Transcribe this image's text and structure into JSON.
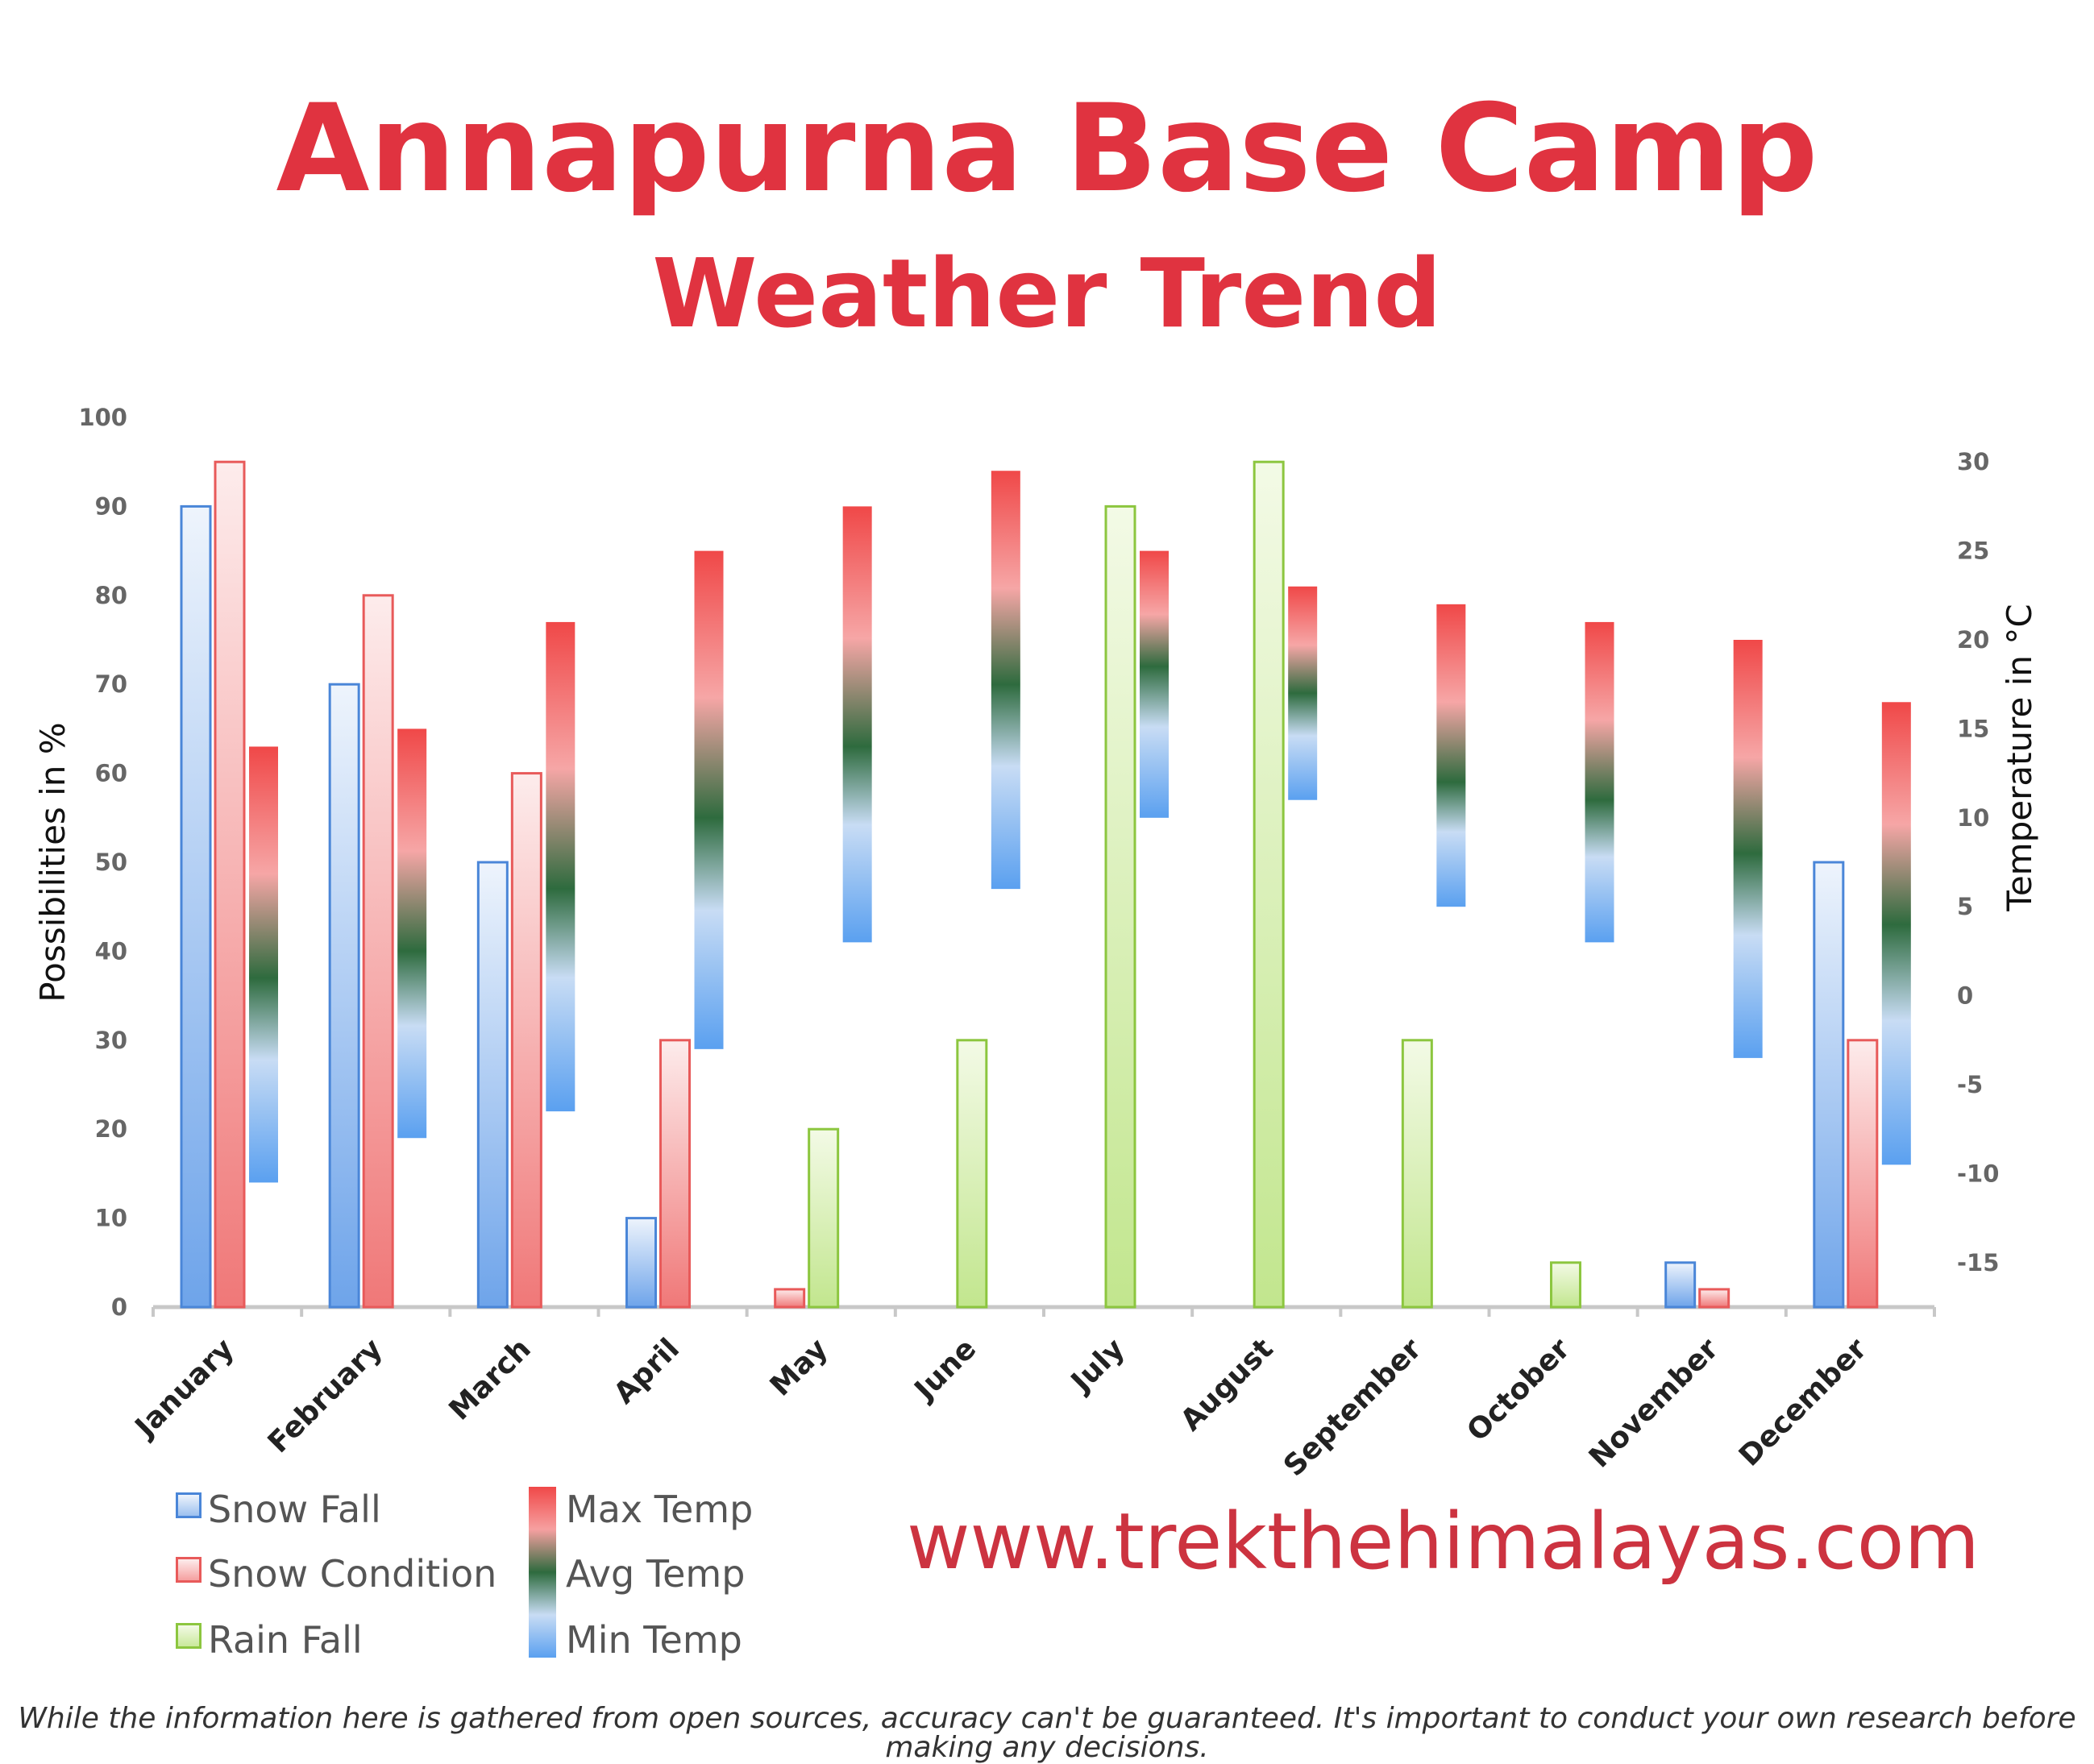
{
  "header": {
    "title": "Annapurna Base Camp",
    "subtitle": "Weather Trend"
  },
  "footer": {
    "website": "www.trekthehimalayas.com",
    "disclaimer": "While the information here is gathered from open sources, accuracy can't be guaranteed. It's important to conduct your own research before making any decisions."
  },
  "chart_data": {
    "type": "bar",
    "categories": [
      "January",
      "February",
      "March",
      "April",
      "May",
      "June",
      "July",
      "August",
      "September",
      "October",
      "November",
      "December"
    ],
    "ylabel": "Possibilities in %",
    "y2label": "Temperature in °C",
    "ylim": [
      0,
      100
    ],
    "y2lim": [
      -17.5,
      32.5
    ],
    "yticks": [
      0,
      10,
      20,
      30,
      40,
      50,
      60,
      70,
      80,
      90,
      100
    ],
    "y2ticks": [
      -15,
      -10,
      -5,
      0,
      5,
      10,
      15,
      20,
      25,
      30
    ],
    "series": [
      {
        "name": "Snow Fall",
        "axis": "left",
        "values": [
          90,
          70,
          50,
          10,
          0,
          0,
          0,
          0,
          0,
          0,
          5,
          50
        ]
      },
      {
        "name": "Snow Condition",
        "axis": "left",
        "values": [
          95,
          80,
          60,
          30,
          2,
          0,
          0,
          0,
          0,
          0,
          2,
          30
        ]
      },
      {
        "name": "Rain Fall",
        "axis": "left",
        "values": [
          0,
          0,
          0,
          0,
          20,
          30,
          90,
          95,
          30,
          5,
          0,
          0
        ]
      },
      {
        "name": "Max Temp",
        "axis": "right",
        "values": [
          14,
          15,
          21,
          25,
          27.5,
          29.5,
          25,
          23,
          22,
          21,
          20,
          16.5
        ]
      },
      {
        "name": "Avg Temp",
        "axis": "right",
        "values": [
          1,
          2.5,
          6,
          10,
          14,
          17.5,
          18.5,
          17,
          12,
          11,
          8,
          4
        ]
      },
      {
        "name": "Min Temp",
        "axis": "right",
        "values": [
          -10.5,
          -8,
          -6.5,
          -3,
          3,
          6,
          10,
          11,
          5,
          3,
          -3.5,
          -9.5
        ]
      }
    ],
    "legend": [
      "Snow Fall",
      "Snow Condition",
      "Rain Fall",
      "Max Temp",
      "Avg Temp",
      "Min Temp"
    ],
    "legend_position": "bottom-left",
    "grid": false,
    "colors": {
      "snow_fall": "#4a86d8",
      "snow_condition": "#e85a5a",
      "rain_fall": "#8cc63f",
      "max_temp": "#f04848",
      "avg_temp": "#2e6b3e",
      "min_temp": "#5aa0f0"
    }
  }
}
